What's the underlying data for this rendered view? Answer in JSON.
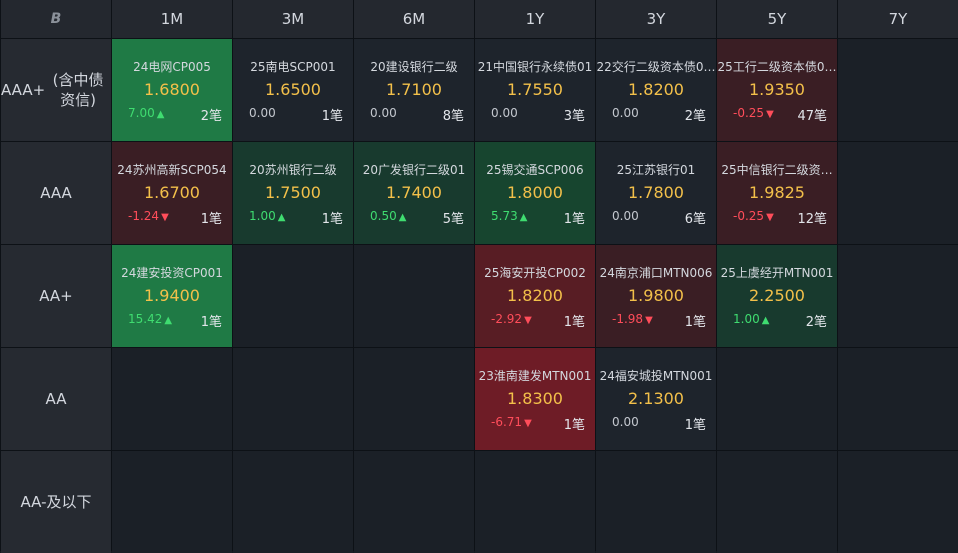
{
  "corner_label": "B",
  "columns": [
    "1M",
    "3M",
    "6M",
    "1Y",
    "3Y",
    "5Y",
    "7Y"
  ],
  "rows": [
    {
      "label_lines": [
        "AAA+",
        "(含中债资信)"
      ],
      "cells": [
        {
          "name": "24电网CP005",
          "yield": "1.6800",
          "change": "7.00",
          "dir": "up",
          "count": "2笔",
          "tone": "g1"
        },
        {
          "name": "25南电SCP001",
          "yield": "1.6500",
          "change": "0.00",
          "dir": "flat",
          "count": "1笔",
          "tone": "neutral"
        },
        {
          "name": "20建设银行二级",
          "yield": "1.7100",
          "change": "0.00",
          "dir": "flat",
          "count": "8笔",
          "tone": "neutral"
        },
        {
          "name": "21中国银行永续债01",
          "yield": "1.7550",
          "change": "0.00",
          "dir": "flat",
          "count": "3笔",
          "tone": "neutral"
        },
        {
          "name": "22交行二级资本债0…",
          "yield": "1.8200",
          "change": "0.00",
          "dir": "flat",
          "count": "2笔",
          "tone": "neutral"
        },
        {
          "name": "25工行二级资本债0…",
          "yield": "1.9350",
          "change": "-0.25",
          "dir": "down",
          "count": "47笔",
          "tone": "r1"
        },
        null
      ]
    },
    {
      "label_lines": [
        "AAA"
      ],
      "cells": [
        {
          "name": "24苏州高新SCP054",
          "yield": "1.6700",
          "change": "-1.24",
          "dir": "down",
          "count": "1笔",
          "tone": "r1"
        },
        {
          "name": "20苏州银行二级",
          "yield": "1.7500",
          "change": "1.00",
          "dir": "up",
          "count": "1笔",
          "tone": "g3"
        },
        {
          "name": "20广发银行二级01",
          "yield": "1.7400",
          "change": "0.50",
          "dir": "up",
          "count": "5笔",
          "tone": "g3"
        },
        {
          "name": "25锡交通SCP006",
          "yield": "1.8000",
          "change": "5.73",
          "dir": "up",
          "count": "1笔",
          "tone": "g2"
        },
        {
          "name": "25江苏银行01",
          "yield": "1.7800",
          "change": "0.00",
          "dir": "flat",
          "count": "6笔",
          "tone": "neutral"
        },
        {
          "name": "25中信银行二级资…",
          "yield": "1.9825",
          "change": "-0.25",
          "dir": "down",
          "count": "12笔",
          "tone": "r1"
        },
        null
      ]
    },
    {
      "label_lines": [
        "AA+"
      ],
      "cells": [
        {
          "name": "24建安投资CP001",
          "yield": "1.9400",
          "change": "15.42",
          "dir": "up",
          "count": "1笔",
          "tone": "g1"
        },
        null,
        null,
        {
          "name": "25海安开投CP002",
          "yield": "1.8200",
          "change": "-2.92",
          "dir": "down",
          "count": "1笔",
          "tone": "r2"
        },
        {
          "name": "24南京浦口MTN006",
          "yield": "1.9800",
          "change": "-1.98",
          "dir": "down",
          "count": "1笔",
          "tone": "r1"
        },
        {
          "name": "25上虞经开MTN001",
          "yield": "2.2500",
          "change": "1.00",
          "dir": "up",
          "count": "2笔",
          "tone": "g3"
        },
        null
      ]
    },
    {
      "label_lines": [
        "AA"
      ],
      "cells": [
        null,
        null,
        null,
        {
          "name": "23淮南建发MTN001",
          "yield": "1.8300",
          "change": "-6.71",
          "dir": "down",
          "count": "1笔",
          "tone": "r3"
        },
        {
          "name": "24福安城投MTN001",
          "yield": "2.1300",
          "change": "0.00",
          "dir": "flat",
          "count": "1笔",
          "tone": "neutral"
        },
        null,
        null
      ]
    },
    {
      "label_lines": [
        "AA-及以下"
      ],
      "cells": [
        null,
        null,
        null,
        null,
        null,
        null,
        null
      ]
    }
  ],
  "symbols": {
    "up": "▲",
    "down": "▼"
  },
  "colors": {
    "yield": "#f3c04a",
    "up": "#3fdc70",
    "down": "#ff4d5a"
  }
}
